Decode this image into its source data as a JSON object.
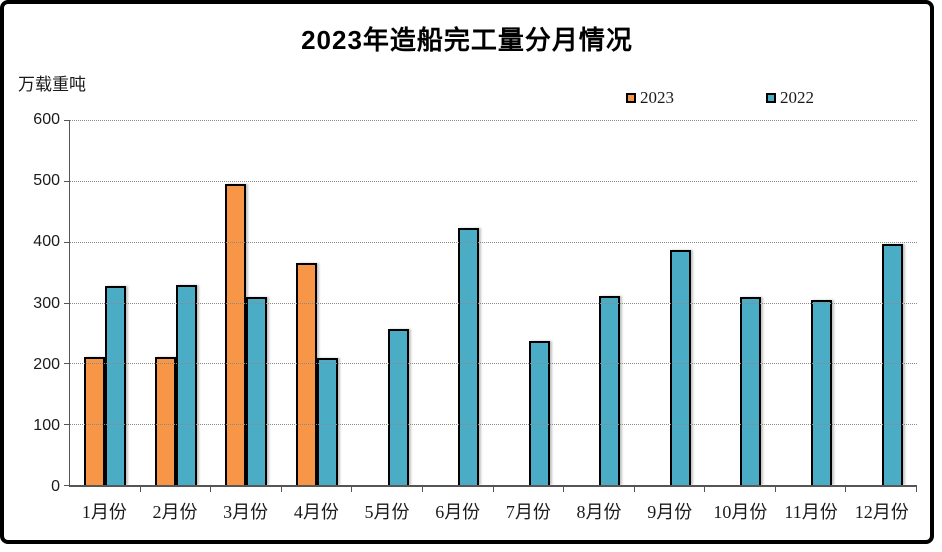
{
  "chart_data": {
    "type": "bar",
    "title": "2023年造船完工量分月情况",
    "unit_label": "万载重吨",
    "categories": [
      "1月份",
      "2月份",
      "3月份",
      "4月份",
      "5月份",
      "6月份",
      "7月份",
      "8月份",
      "9月份",
      "10月份",
      "11月份",
      "12月份"
    ],
    "series": [
      {
        "name": "2023",
        "color": "#F79646",
        "values": [
          211,
          211,
          495,
          365,
          null,
          null,
          null,
          null,
          null,
          null,
          null,
          null
        ]
      },
      {
        "name": "2022",
        "color": "#4BACC6",
        "values": [
          327,
          328,
          309,
          209,
          257,
          422,
          236,
          310,
          386,
          309,
          304,
          396
        ]
      }
    ],
    "ylim": [
      0,
      600
    ],
    "yticks": [
      600,
      500,
      400,
      300,
      200,
      100,
      0
    ],
    "grid": "horizontal-dotted",
    "legend_position": "top-right",
    "colors": {
      "axis": "#555555",
      "gridline": "#8a8a8a",
      "bar_border": "#000000",
      "text": "#1a1a1a"
    }
  }
}
